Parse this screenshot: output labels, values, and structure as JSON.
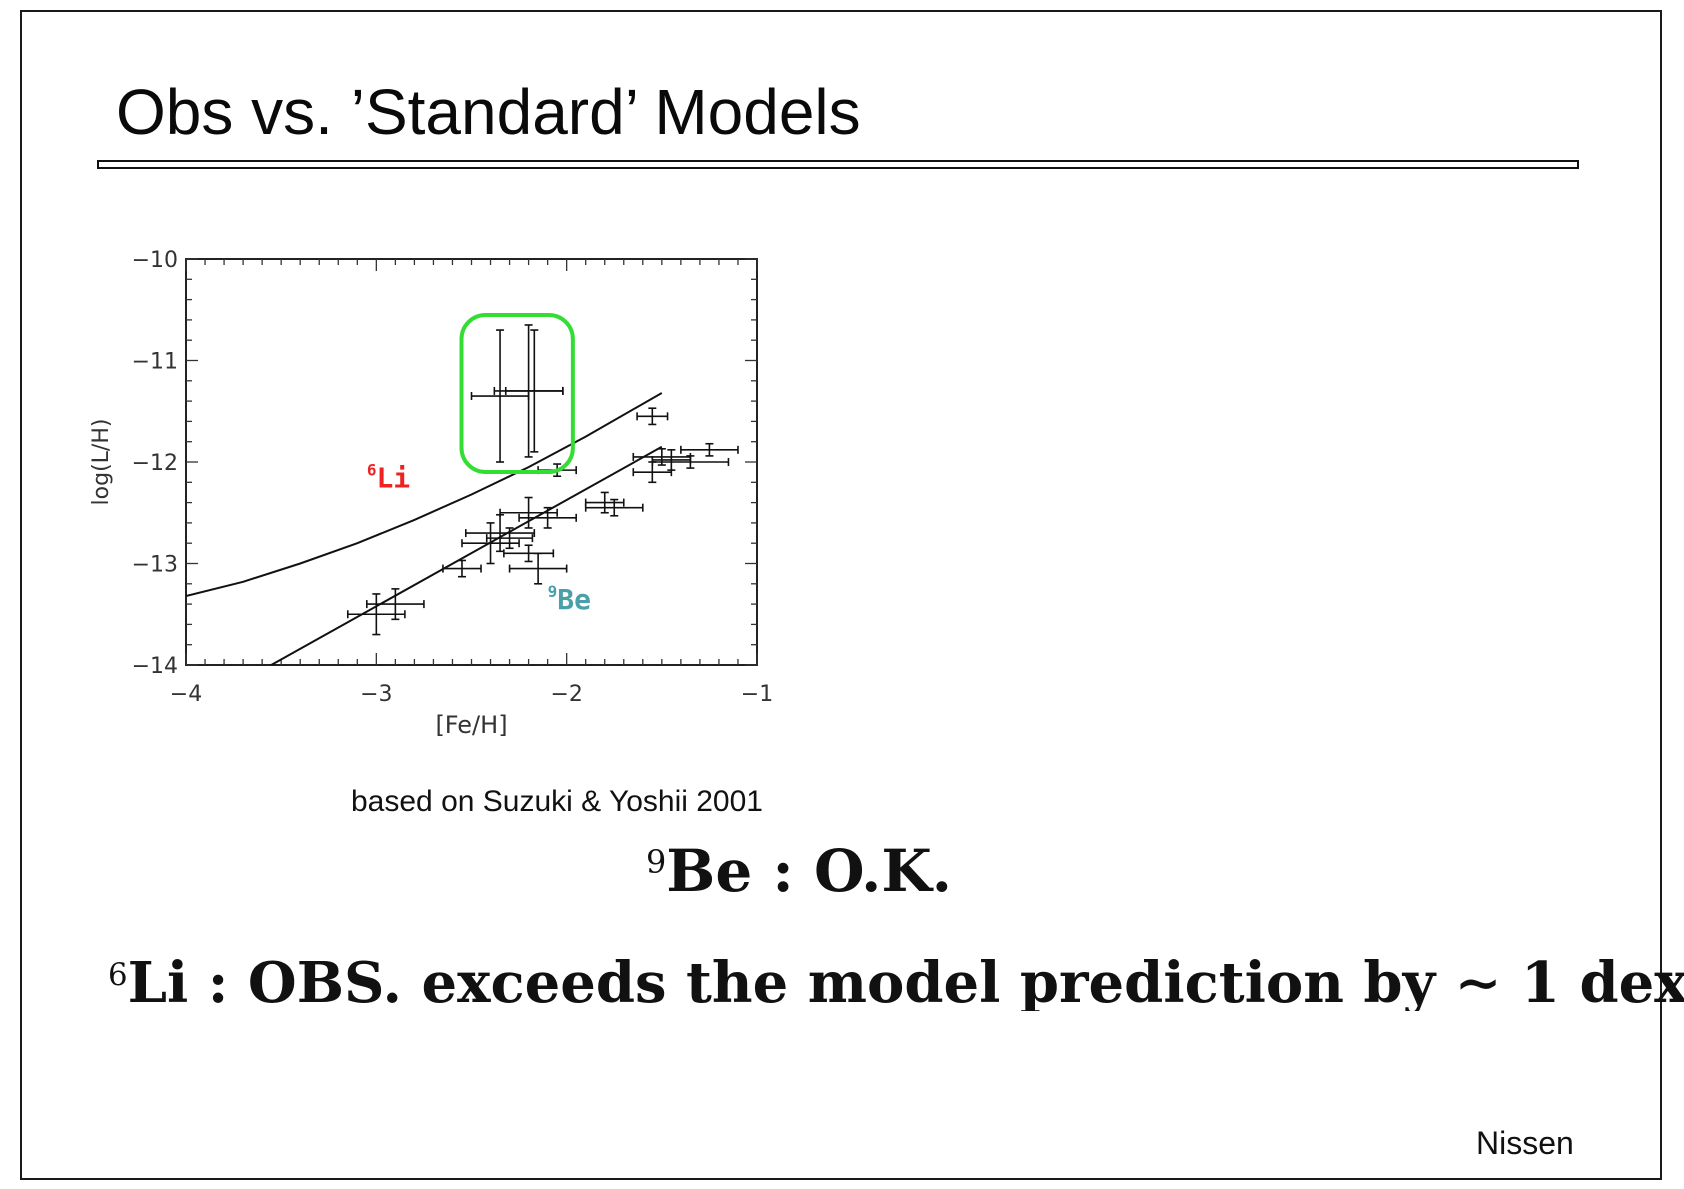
{
  "slide": {
    "title": "Obs vs. ’Standard’ Models",
    "caption": "based on Suzuki & Yoshii 2001",
    "be_statement": {
      "sup": "9",
      "text": "Be :  O.K."
    },
    "li_statement": {
      "sup": "6",
      "text": "Li :  OBS. exceeds the model prediction by ∼ 1 dex"
    },
    "author": "Nissen"
  },
  "chart_data": {
    "type": "scatter",
    "title": "",
    "xlabel": "[Fe/H]",
    "ylabel": "log(L/H)",
    "xlim": [
      -4,
      -1
    ],
    "ylim": [
      -14,
      -10
    ],
    "xticks": [
      "−4",
      "−3",
      "−2",
      "−1"
    ],
    "yticks": [
      "−10",
      "−11",
      "−12",
      "−13",
      "−14"
    ],
    "grid": false,
    "highlight_color": "#33dd33",
    "series": [
      {
        "name": "6Li",
        "label_sup": "6",
        "label_text": "Li",
        "color": "#ee2222",
        "model_curve": [
          [
            -4.0,
            -13.32
          ],
          [
            -3.7,
            -13.18
          ],
          [
            -3.4,
            -13.0
          ],
          [
            -3.1,
            -12.8
          ],
          [
            -2.8,
            -12.57
          ],
          [
            -2.5,
            -12.32
          ],
          [
            -2.2,
            -12.05
          ],
          [
            -1.9,
            -11.75
          ],
          [
            -1.5,
            -11.32
          ]
        ],
        "points": [
          {
            "x": -2.35,
            "y": -11.35,
            "xerr": 0.15,
            "yerr": 0.65
          },
          {
            "x": -2.2,
            "y": -11.3,
            "xerr": 0.18,
            "yerr": 0.65
          },
          {
            "x": -2.17,
            "y": -11.3,
            "xerr": 0.15,
            "yerr": 0.6
          }
        ]
      },
      {
        "name": "9Be",
        "label_sup": "9",
        "label_text": "Be",
        "color": "#4aa0a8",
        "model_curve": [
          [
            -3.6,
            -14.05
          ],
          [
            -1.5,
            -11.85
          ]
        ],
        "points": [
          {
            "x": -3.0,
            "y": -13.5,
            "xerr": 0.15,
            "yerr": 0.2
          },
          {
            "x": -2.9,
            "y": -13.4,
            "xerr": 0.15,
            "yerr": 0.15
          },
          {
            "x": -2.55,
            "y": -13.05,
            "xerr": 0.1,
            "yerr": 0.08
          },
          {
            "x": -2.4,
            "y": -12.8,
            "xerr": 0.15,
            "yerr": 0.2
          },
          {
            "x": -2.35,
            "y": -12.7,
            "xerr": 0.18,
            "yerr": 0.18
          },
          {
            "x": -2.3,
            "y": -12.75,
            "xerr": 0.12,
            "yerr": 0.1
          },
          {
            "x": -2.2,
            "y": -12.9,
            "xerr": 0.13,
            "yerr": 0.08
          },
          {
            "x": -2.15,
            "y": -13.05,
            "xerr": 0.15,
            "yerr": 0.15
          },
          {
            "x": -2.2,
            "y": -12.5,
            "xerr": 0.15,
            "yerr": 0.15
          },
          {
            "x": -2.1,
            "y": -12.55,
            "xerr": 0.15,
            "yerr": 0.1
          },
          {
            "x": -2.05,
            "y": -12.08,
            "xerr": 0.1,
            "yerr": 0.06
          },
          {
            "x": -1.8,
            "y": -12.4,
            "xerr": 0.1,
            "yerr": 0.1
          },
          {
            "x": -1.75,
            "y": -12.45,
            "xerr": 0.15,
            "yerr": 0.08
          },
          {
            "x": -1.55,
            "y": -11.55,
            "xerr": 0.08,
            "yerr": 0.08
          },
          {
            "x": -1.55,
            "y": -12.1,
            "xerr": 0.1,
            "yerr": 0.1
          },
          {
            "x": -1.5,
            "y": -11.95,
            "xerr": 0.15,
            "yerr": 0.08
          },
          {
            "x": -1.45,
            "y": -11.98,
            "xerr": 0.1,
            "yerr": 0.1
          },
          {
            "x": -1.35,
            "y": -12.0,
            "xerr": 0.2,
            "yerr": 0.06
          },
          {
            "x": -1.25,
            "y": -11.88,
            "xerr": 0.15,
            "yerr": 0.06
          }
        ]
      }
    ]
  }
}
